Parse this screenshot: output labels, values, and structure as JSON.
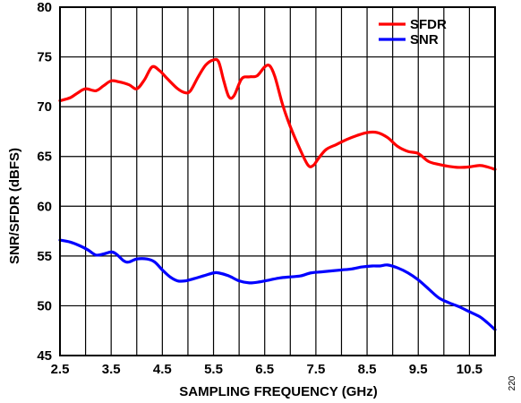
{
  "chart_data": {
    "type": "line",
    "xlabel": "SAMPLING FREQUENCY (GHz)",
    "ylabel": "SNR/SFDR (dBFS)",
    "xlim": [
      2.5,
      11.0
    ],
    "ylim": [
      45,
      80
    ],
    "x_ticks": [
      2.5,
      3.5,
      4.5,
      5.5,
      6.5,
      7.5,
      8.5,
      9.5,
      10.5
    ],
    "x_tick_labels": [
      "2.5",
      "3.5",
      "4.5",
      "5.5",
      "6.5",
      "7.5",
      "8.5",
      "9.5",
      "10.5"
    ],
    "x_gridlines": [
      2.5,
      3.0,
      3.5,
      4.0,
      4.5,
      5.0,
      5.5,
      6.0,
      6.5,
      7.0,
      7.5,
      8.0,
      8.5,
      9.0,
      9.5,
      10.0,
      10.5,
      11.0
    ],
    "y_ticks": [
      45,
      50,
      55,
      60,
      65,
      70,
      75,
      80
    ],
    "y_tick_labels": [
      "45",
      "50",
      "55",
      "60",
      "65",
      "70",
      "75",
      "80"
    ],
    "grid": true,
    "legend_position": "top-right",
    "series": [
      {
        "name": "SFDR",
        "color": "#ff0000",
        "points": [
          [
            2.5,
            70.6
          ],
          [
            2.7,
            70.9
          ],
          [
            2.85,
            71.4
          ],
          [
            3.0,
            71.8
          ],
          [
            3.2,
            71.6
          ],
          [
            3.35,
            72.1
          ],
          [
            3.5,
            72.6
          ],
          [
            3.65,
            72.5
          ],
          [
            3.85,
            72.2
          ],
          [
            4.0,
            71.8
          ],
          [
            4.15,
            72.7
          ],
          [
            4.3,
            74.0
          ],
          [
            4.45,
            73.6
          ],
          [
            4.6,
            72.8
          ],
          [
            4.8,
            71.8
          ],
          [
            4.95,
            71.4
          ],
          [
            5.05,
            71.6
          ],
          [
            5.2,
            73.0
          ],
          [
            5.35,
            74.2
          ],
          [
            5.5,
            74.7
          ],
          [
            5.6,
            74.5
          ],
          [
            5.7,
            72.6
          ],
          [
            5.8,
            71.0
          ],
          [
            5.9,
            71.1
          ],
          [
            6.05,
            72.8
          ],
          [
            6.2,
            73.0
          ],
          [
            6.35,
            73.1
          ],
          [
            6.5,
            74.0
          ],
          [
            6.6,
            74.1
          ],
          [
            6.7,
            73.0
          ],
          [
            6.85,
            70.2
          ],
          [
            7.0,
            68.0
          ],
          [
            7.2,
            65.6
          ],
          [
            7.35,
            64.1
          ],
          [
            7.45,
            64.1
          ],
          [
            7.55,
            64.8
          ],
          [
            7.7,
            65.7
          ],
          [
            7.9,
            66.2
          ],
          [
            8.1,
            66.7
          ],
          [
            8.3,
            67.1
          ],
          [
            8.5,
            67.4
          ],
          [
            8.7,
            67.4
          ],
          [
            8.9,
            66.9
          ],
          [
            9.1,
            66.0
          ],
          [
            9.3,
            65.5
          ],
          [
            9.5,
            65.3
          ],
          [
            9.7,
            64.5
          ],
          [
            9.9,
            64.2
          ],
          [
            10.1,
            64.0
          ],
          [
            10.3,
            63.9
          ],
          [
            10.5,
            63.95
          ],
          [
            10.7,
            64.1
          ],
          [
            10.85,
            63.95
          ],
          [
            11.0,
            63.7
          ]
        ]
      },
      {
        "name": "SNR",
        "color": "#0000ff",
        "points": [
          [
            2.5,
            56.6
          ],
          [
            2.7,
            56.4
          ],
          [
            2.9,
            56.0
          ],
          [
            3.05,
            55.6
          ],
          [
            3.2,
            55.1
          ],
          [
            3.35,
            55.2
          ],
          [
            3.5,
            55.4
          ],
          [
            3.6,
            55.2
          ],
          [
            3.75,
            54.5
          ],
          [
            3.85,
            54.4
          ],
          [
            4.0,
            54.7
          ],
          [
            4.2,
            54.7
          ],
          [
            4.35,
            54.4
          ],
          [
            4.5,
            53.6
          ],
          [
            4.65,
            52.9
          ],
          [
            4.8,
            52.5
          ],
          [
            4.95,
            52.5
          ],
          [
            5.1,
            52.7
          ],
          [
            5.3,
            53.0
          ],
          [
            5.5,
            53.3
          ],
          [
            5.6,
            53.3
          ],
          [
            5.8,
            53.0
          ],
          [
            6.0,
            52.5
          ],
          [
            6.2,
            52.3
          ],
          [
            6.4,
            52.4
          ],
          [
            6.6,
            52.6
          ],
          [
            6.8,
            52.8
          ],
          [
            7.0,
            52.9
          ],
          [
            7.2,
            53.0
          ],
          [
            7.4,
            53.3
          ],
          [
            7.6,
            53.4
          ],
          [
            7.8,
            53.5
          ],
          [
            8.0,
            53.6
          ],
          [
            8.2,
            53.7
          ],
          [
            8.4,
            53.9
          ],
          [
            8.6,
            54.0
          ],
          [
            8.75,
            54.0
          ],
          [
            8.9,
            54.1
          ],
          [
            9.1,
            53.8
          ],
          [
            9.3,
            53.3
          ],
          [
            9.5,
            52.6
          ],
          [
            9.7,
            51.7
          ],
          [
            9.9,
            50.8
          ],
          [
            10.1,
            50.3
          ],
          [
            10.3,
            49.9
          ],
          [
            10.5,
            49.4
          ],
          [
            10.7,
            48.9
          ],
          [
            10.85,
            48.3
          ],
          [
            11.0,
            47.6
          ]
        ]
      }
    ]
  },
  "figure_id": "220"
}
